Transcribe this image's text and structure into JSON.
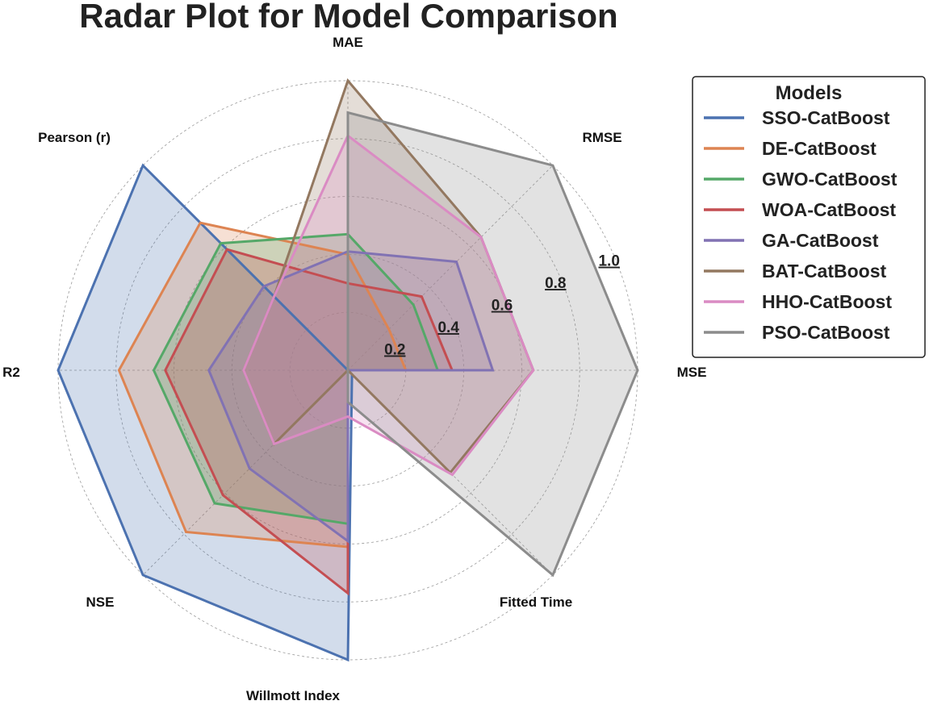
{
  "chart_data": {
    "type": "radar",
    "title": "Radar Plot for Model Comparison",
    "axes": [
      "MSE",
      "RMSE",
      "MAE",
      "Pearson (r)",
      "R2",
      "NSE",
      "Willmott Index",
      "Fitted Time"
    ],
    "radial_ticks": [
      "0.2",
      "0.4",
      "0.6",
      "0.8",
      "1.0"
    ],
    "radial_range": [
      0,
      1
    ],
    "legend_title": "Models",
    "legend_position": "right",
    "series": [
      {
        "name": "SSO-CatBoost",
        "color": "#4c72b0",
        "values": [
          0.0,
          0.0,
          0.0,
          1.0,
          1.0,
          1.0,
          1.0,
          0.02
        ]
      },
      {
        "name": "DE-CatBoost",
        "color": "#dd8452",
        "values": [
          0.2,
          0.2,
          0.4,
          0.72,
          0.79,
          0.79,
          0.61,
          0.0
        ]
      },
      {
        "name": "GWO-CatBoost",
        "color": "#55a868",
        "values": [
          0.31,
          0.32,
          0.47,
          0.62,
          0.67,
          0.65,
          0.53,
          0.0
        ]
      },
      {
        "name": "WOA-CatBoost",
        "color": "#c44e52",
        "values": [
          0.36,
          0.36,
          0.3,
          0.59,
          0.63,
          0.61,
          0.77,
          0.0
        ]
      },
      {
        "name": "GA-CatBoost",
        "color": "#8172b3",
        "values": [
          0.5,
          0.53,
          0.41,
          0.41,
          0.48,
          0.48,
          0.59,
          0.0
        ]
      },
      {
        "name": "BAT-CatBoost",
        "color": "#937860",
        "values": [
          0.64,
          0.65,
          1.0,
          0.36,
          0.36,
          0.36,
          0.0,
          0.5
        ]
      },
      {
        "name": "HHO-CatBoost",
        "color": "#da8bc3",
        "values": [
          0.64,
          0.65,
          0.81,
          0.36,
          0.36,
          0.36,
          0.16,
          0.51
        ]
      },
      {
        "name": "PSO-CatBoost",
        "color": "#8c8c8c",
        "values": [
          1.0,
          1.0,
          0.89,
          0.0,
          0.0,
          0.0,
          0.11,
          1.0
        ]
      }
    ]
  }
}
